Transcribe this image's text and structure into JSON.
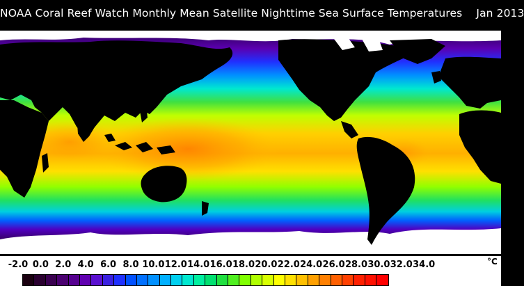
{
  "title": "NOAA Coral Reef Watch Monthly Mean Satellite Nighttime Sea Surface Temperatures    Jan 2013",
  "legend": {
    "tick_labels": [
      "-2.0",
      "0.0",
      "2.0",
      "4.0",
      "6.0",
      "8.0",
      "10.0",
      "12.0",
      "14.0",
      "16.0",
      "18.0",
      "20.0",
      "22.0",
      "24.0",
      "26.0",
      "28.0",
      "30.0",
      "32.0",
      "34.0"
    ],
    "unit": "°C",
    "colors": [
      "#1a0010",
      "#2a0030",
      "#3a0050",
      "#4a0070",
      "#560090",
      "#6000b0",
      "#5a10d0",
      "#3a20e0",
      "#1f30ff",
      "#0050ff",
      "#0070ff",
      "#0090ff",
      "#00b0ff",
      "#00d0f0",
      "#00e8d0",
      "#00f0a0",
      "#00e070",
      "#20e040",
      "#50f020",
      "#80ff00",
      "#b0ff00",
      "#d8ff00",
      "#ffff00",
      "#ffe000",
      "#ffc000",
      "#ffa000",
      "#ff8000",
      "#ff6000",
      "#ff4000",
      "#ff2000",
      "#ff1000",
      "#ff0000"
    ]
  },
  "map": {
    "land_color": "#000000",
    "ice_color": "#ffffff"
  }
}
